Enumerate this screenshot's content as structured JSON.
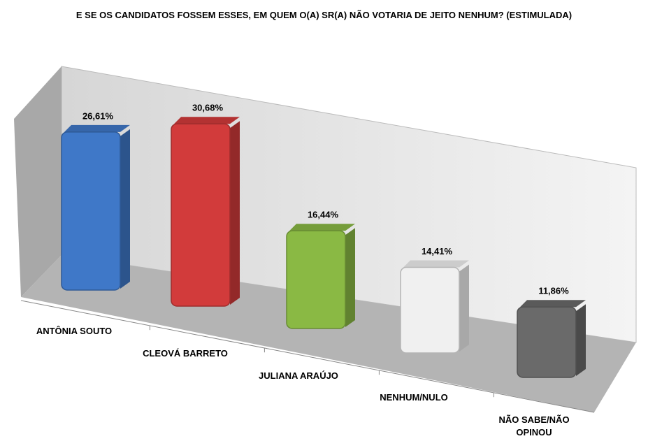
{
  "chart_data": {
    "type": "bar3d",
    "title": "E SE OS CANDIDATOS FOSSEM ESSES, EM QUEM O(A) SR(A) NÃO VOTARIA DE JEITO NENHUM? (ESTIMULADA)",
    "categories": [
      "ANTÔNIA SOUTO",
      "CLEOVÁ BARRETO",
      "JULIANA ARAÚJO",
      "NENHUM/NULO",
      "NÃO SABE/NÃO OPINOU"
    ],
    "values": [
      26.61,
      30.68,
      16.44,
      14.41,
      11.86
    ],
    "value_labels": [
      "26,61%",
      "30,68%",
      "16,44%",
      "14,41%",
      "11,86%"
    ],
    "colors": [
      "#3f78c8",
      "#d23b3b",
      "#8ab944",
      "#f0f0f0",
      "#6a6a6a"
    ]
  }
}
